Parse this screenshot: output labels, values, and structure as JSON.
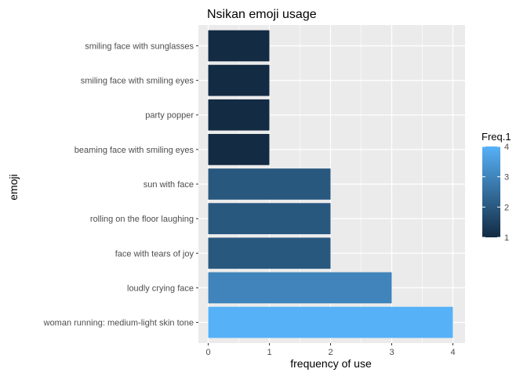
{
  "chart_data": {
    "type": "bar",
    "orientation": "horizontal",
    "title": "Nsikan emoji usage",
    "xlabel": "frequency of use",
    "ylabel": "emoji",
    "categories": [
      "woman running: medium-light skin tone",
      "loudly crying face",
      "face with tears of joy",
      "rolling on the floor laughing",
      "sun with face",
      "beaming face with smiling eyes",
      "party popper",
      "smiling face with smiling eyes",
      "smiling face with sunglasses"
    ],
    "values": [
      4,
      3,
      2,
      2,
      2,
      1,
      1,
      1,
      1
    ],
    "xlim": [
      0,
      4
    ],
    "x_ticks": [
      "0",
      "1",
      "2",
      "3",
      "4"
    ],
    "grid": true,
    "legend": {
      "title": "Freq.1",
      "type": "colorbar",
      "placement": "right",
      "range": [
        1,
        4
      ],
      "labels": [
        "1",
        "2",
        "3",
        "4"
      ],
      "color_low": "#132B43",
      "color_high": "#56B1F7"
    },
    "panel_background": "#EBEBEB",
    "grid_color": "#FFFFFF"
  }
}
